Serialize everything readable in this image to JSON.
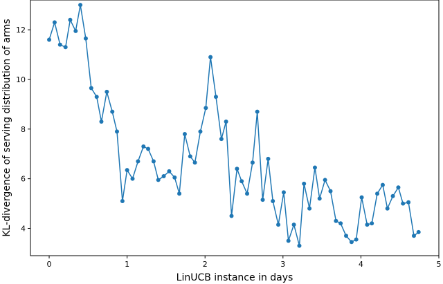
{
  "chart_data": {
    "type": "line",
    "xlabel": "LinUCB instance in days",
    "ylabel": "KL-divergence of serving distribution of arms",
    "xlim": [
      -0.24,
      5.0
    ],
    "ylim": [
      2.9,
      13.2
    ],
    "xticks": [
      "0",
      "1",
      "2",
      "3",
      "4",
      "5"
    ],
    "yticks": [
      "4",
      "6",
      "8",
      "10",
      "12"
    ],
    "grid": false,
    "color": "#1f77b4",
    "series": [
      {
        "x": [
          0.0,
          0.07,
          0.14,
          0.21,
          0.27,
          0.34,
          0.4,
          0.47,
          0.54,
          0.61,
          0.67,
          0.74,
          0.81,
          0.87,
          0.94,
          1.0,
          1.07,
          1.14,
          1.21,
          1.27,
          1.34,
          1.4,
          1.47,
          1.54,
          1.61,
          1.67,
          1.74,
          1.81,
          1.87,
          1.94,
          2.01,
          2.07,
          2.14,
          2.21,
          2.27,
          2.34,
          2.41,
          2.47,
          2.54,
          2.61,
          2.67,
          2.74,
          2.81,
          2.87,
          2.94,
          3.01,
          3.07,
          3.14,
          3.21,
          3.27,
          3.34,
          3.41,
          3.47,
          3.54,
          3.61,
          3.68,
          3.74,
          3.81,
          3.88,
          3.94,
          4.01,
          4.08,
          4.14,
          4.21,
          4.28,
          4.34,
          4.41,
          4.48,
          4.54,
          4.61,
          4.68,
          4.74
        ],
        "y": [
          11.6,
          12.3,
          11.4,
          11.3,
          12.4,
          11.95,
          13.0,
          11.65,
          9.65,
          9.3,
          8.3,
          9.5,
          8.7,
          7.9,
          5.1,
          6.35,
          6.0,
          6.7,
          7.3,
          7.2,
          6.7,
          5.95,
          6.1,
          6.3,
          6.05,
          5.4,
          7.8,
          6.9,
          6.65,
          7.9,
          8.85,
          10.9,
          9.3,
          7.6,
          8.3,
          4.5,
          6.4,
          5.9,
          5.4,
          6.65,
          8.7,
          5.15,
          6.8,
          5.1,
          4.15,
          5.45,
          3.5,
          4.15,
          3.3,
          5.8,
          4.8,
          6.45,
          5.2,
          5.95,
          5.5,
          4.3,
          4.2,
          3.7,
          3.45,
          3.55,
          5.25,
          4.15,
          4.2,
          5.4,
          5.75,
          4.8,
          5.3,
          5.65,
          5.0,
          5.05,
          3.7,
          3.85
        ]
      }
    ]
  }
}
